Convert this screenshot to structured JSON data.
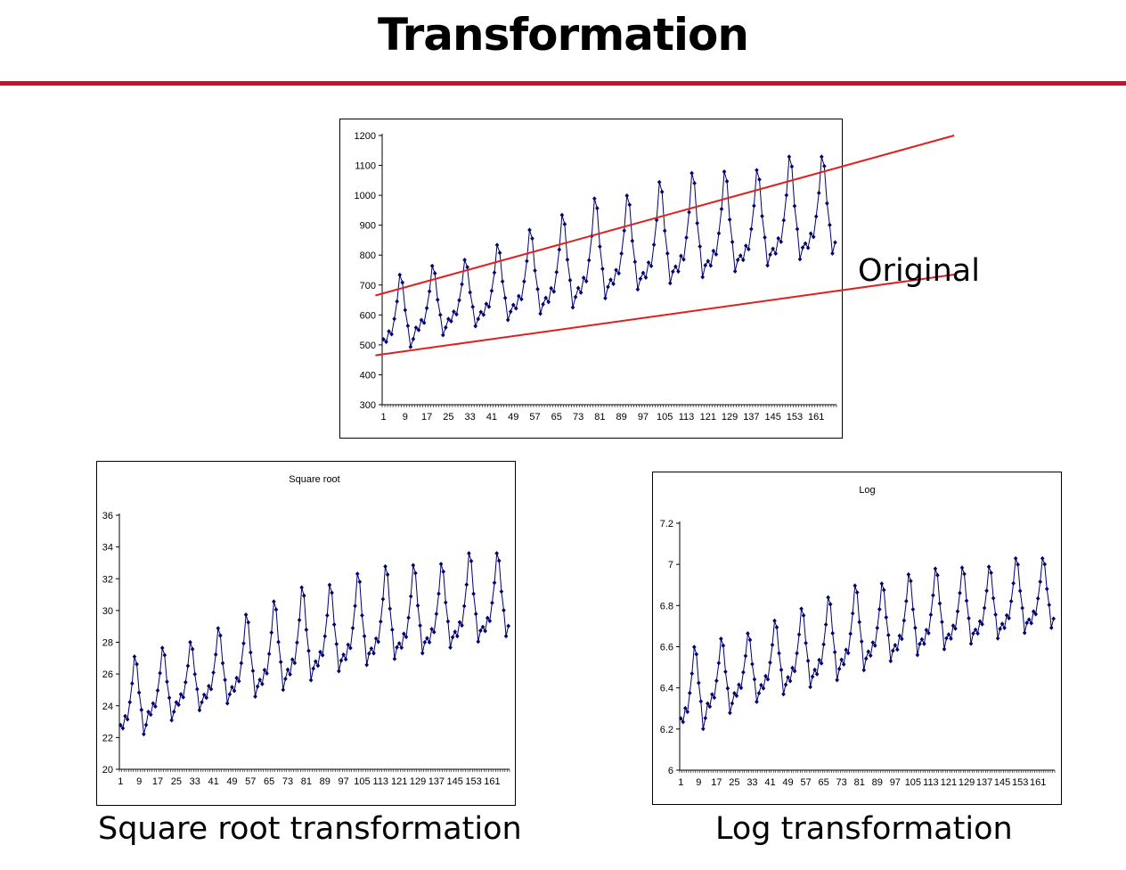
{
  "slide": {
    "title": "Transformation",
    "accent_color": "#c8102e"
  },
  "labels": {
    "original": "Original",
    "sqrt_caption": "Square root transformation",
    "log_caption": "Log transformation"
  },
  "colors": {
    "series": "#00006e",
    "trend": "#e02020"
  },
  "chart_data": [
    {
      "type": "line",
      "title": "",
      "series_name": "Original",
      "x_ticks": [
        "1",
        "9",
        "17",
        "25",
        "33",
        "41",
        "49",
        "57",
        "65",
        "73",
        "81",
        "89",
        "97",
        "105",
        "113",
        "121",
        "129",
        "137",
        "145",
        "153",
        "161"
      ],
      "y_ticks": [
        "300",
        "400",
        "500",
        "600",
        "700",
        "800",
        "900",
        "1000",
        "1100",
        "1200"
      ],
      "ylim": [
        300,
        1200
      ],
      "n_points": 168,
      "x_range": [
        1,
        168
      ],
      "season_length": 12,
      "approx_seasonal_troughs": [
        490,
        530,
        560,
        580,
        600,
        620,
        650,
        680,
        700,
        720,
        740,
        760,
        780,
        800
      ],
      "approx_seasonal_peaks": [
        730,
        760,
        780,
        830,
        880,
        930,
        985,
        995,
        1040,
        1070,
        1075,
        1080,
        1125,
        1125
      ],
      "trend_lines": {
        "upper": {
          "x": [
            -2,
            212
          ],
          "y": [
            665,
            1200
          ]
        },
        "lower": {
          "x": [
            -2,
            212
          ],
          "y": [
            465,
            735
          ]
        }
      }
    },
    {
      "type": "line",
      "title": "Square root",
      "x_ticks": [
        "1",
        "9",
        "17",
        "25",
        "33",
        "41",
        "49",
        "57",
        "65",
        "73",
        "81",
        "89",
        "97",
        "105",
        "113",
        "121",
        "129",
        "137",
        "145",
        "153",
        "161"
      ],
      "y_ticks": [
        "20",
        "22",
        "24",
        "26",
        "28",
        "30",
        "32",
        "34",
        "36"
      ],
      "ylim": [
        20,
        36
      ],
      "transform": "sqrt"
    },
    {
      "type": "line",
      "title": "Log",
      "x_ticks": [
        "1",
        "9",
        "17",
        "25",
        "33",
        "41",
        "49",
        "57",
        "65",
        "73",
        "81",
        "89",
        "97",
        "105",
        "113",
        "121",
        "129",
        "137",
        "145",
        "153",
        "161"
      ],
      "y_ticks": [
        "6",
        "6.2",
        "6.4",
        "6.6",
        "6.8",
        "7",
        "7.2"
      ],
      "ylim": [
        6,
        7.2
      ],
      "transform": "log"
    }
  ]
}
